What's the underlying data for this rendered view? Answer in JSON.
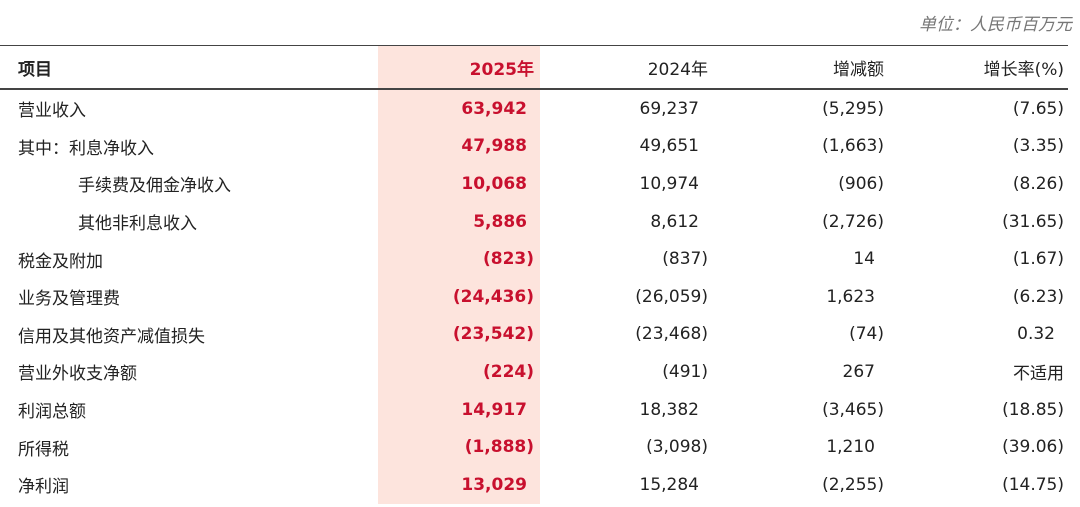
{
  "unit": "单位：人民币百万元",
  "table": {
    "headers": [
      "项目",
      "2025年",
      "2024年",
      "增减额",
      "增长率(%)"
    ],
    "rows": [
      {
        "label": "营业收入",
        "indent": false,
        "values": [
          "63,942",
          "69,237",
          "(5,295)",
          "(7.65)"
        ]
      },
      {
        "label": "其中：利息净收入",
        "indent": false,
        "values": [
          "47,988",
          "49,651",
          "(1,663)",
          "(3.35)"
        ]
      },
      {
        "label": "手续费及佣金净收入",
        "indent": true,
        "values": [
          "10,068",
          "10,974",
          "(906)",
          "(8.26)"
        ]
      },
      {
        "label": "其他非利息收入",
        "indent": true,
        "values": [
          "5,886",
          "8,612",
          "(2,726)",
          "(31.65)"
        ]
      },
      {
        "label": "税金及附加",
        "indent": false,
        "values": [
          "(823)",
          "(837)",
          "14",
          "(1.67)"
        ]
      },
      {
        "label": "业务及管理费",
        "indent": false,
        "values": [
          "(24,436)",
          "(26,059)",
          "1,623",
          "(6.23)"
        ]
      },
      {
        "label": "信用及其他资产减值损失",
        "indent": false,
        "values": [
          "(23,542)",
          "(23,468)",
          "(74)",
          "0.32"
        ]
      },
      {
        "label": "营业外收支净额",
        "indent": false,
        "values": [
          "(224)",
          "(491)",
          "267",
          "不适用"
        ]
      },
      {
        "label": "利润总额",
        "indent": false,
        "values": [
          "14,917",
          "18,382",
          "(3,465)",
          "(18.85)"
        ]
      },
      {
        "label": "所得税",
        "indent": false,
        "values": [
          "(1,888)",
          "(3,098)",
          "1,210",
          "(39.06)"
        ]
      },
      {
        "label": "净利润",
        "indent": false,
        "values": [
          "13,029",
          "15,284",
          "(2,255)",
          "(14.75)"
        ]
      }
    ]
  }
}
